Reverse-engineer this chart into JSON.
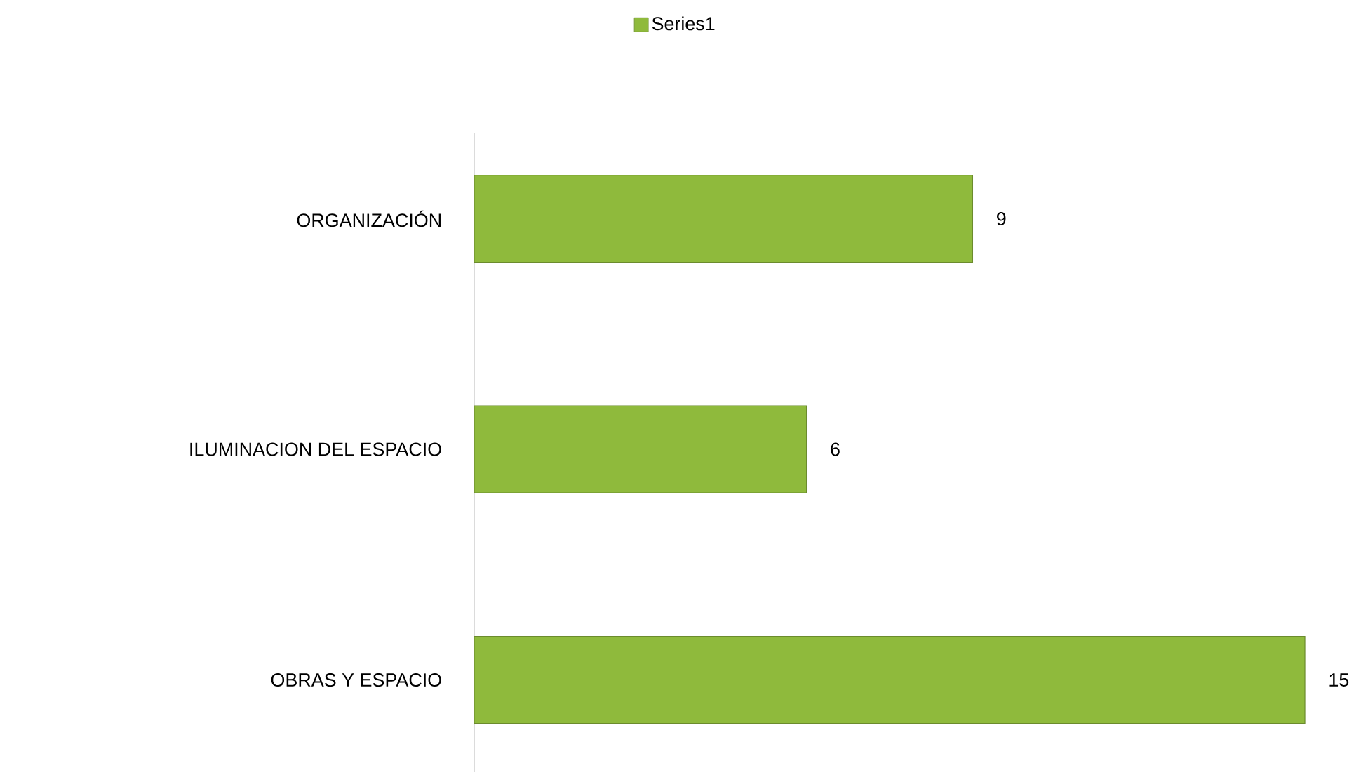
{
  "chart_data": {
    "type": "bar",
    "orientation": "horizontal",
    "categories": [
      "ORGANIZACIÓN",
      "ILUMINACION DEL ESPACIO",
      "OBRAS Y ESPACIO"
    ],
    "series": [
      {
        "name": "Series1",
        "color": "#8fba3c",
        "values": [
          9,
          6,
          15
        ]
      }
    ],
    "data_labels": true,
    "legend": "top"
  }
}
